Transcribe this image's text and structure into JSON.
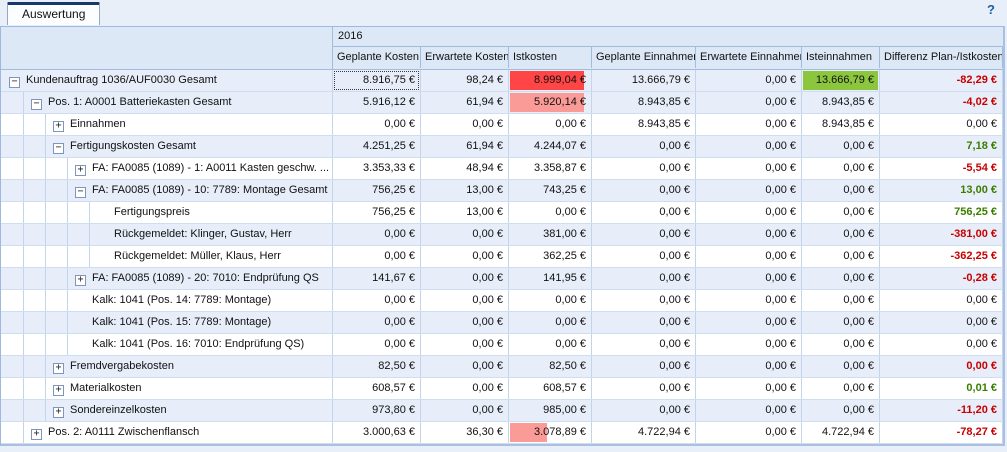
{
  "tab": {
    "label": "Auswertung"
  },
  "help": {
    "icon": "?"
  },
  "header": {
    "year": "2016",
    "columns": [
      {
        "key": "geplante-kosten",
        "label": "Geplante Kosten"
      },
      {
        "key": "erwartete-kosten",
        "label": "Erwartete Kosten"
      },
      {
        "key": "istkosten",
        "label": "Istkosten"
      },
      {
        "key": "geplante-einnahmen",
        "label": "Geplante Einnahmen"
      },
      {
        "key": "erwartete-einnahmen",
        "label": "Erwartete Einnahmen"
      },
      {
        "key": "isteinnahmen",
        "label": "Isteinnahmen"
      },
      {
        "key": "differenz",
        "label": "Differenz Plan-/Istkosten"
      }
    ]
  },
  "colors": {
    "bar_red": "#FF4545",
    "bar_pink": "#FA9B98",
    "bar_green": "#8CC63F",
    "negative_text": "#C80000",
    "positive_text": "#3A7D00",
    "zero_text": "#111111"
  },
  "rows": [
    {
      "label": "Kundenauftrag 1036/AUF0030 Gesamt",
      "level": 0,
      "expander": "minus",
      "shaded": true,
      "values": [
        "8.916,75 €",
        "98,24 €",
        "8.999,04 €",
        "13.666,79 €",
        "0,00 €",
        "13.666,79 €",
        "-82,29 €"
      ],
      "diff_type": "neg",
      "selected_col": 0,
      "bars": [
        {
          "col": 2,
          "color": "bar_red",
          "width_pct": 90
        },
        {
          "col": 5,
          "color": "bar_green",
          "width_pct": 98
        }
      ]
    },
    {
      "label": "Pos. 1: A0001 Batteriekasten Gesamt",
      "level": 1,
      "expander": "minus",
      "shaded": true,
      "values": [
        "5.916,12 €",
        "61,94 €",
        "5.920,14 €",
        "8.943,85 €",
        "0,00 €",
        "8.943,85 €",
        "-4,02 €"
      ],
      "diff_type": "neg",
      "bars": [
        {
          "col": 2,
          "color": "bar_pink",
          "width_pct": 90
        }
      ]
    },
    {
      "label": "Einnahmen",
      "level": 2,
      "expander": "plus",
      "shaded": false,
      "values": [
        "0,00 €",
        "0,00 €",
        "0,00 €",
        "8.943,85 €",
        "0,00 €",
        "8.943,85 €",
        "0,00 €"
      ],
      "diff_type": "zero",
      "bars": []
    },
    {
      "label": "Fertigungskosten Gesamt",
      "level": 2,
      "expander": "minus",
      "shaded": true,
      "values": [
        "4.251,25 €",
        "61,94 €",
        "4.244,07 €",
        "0,00 €",
        "0,00 €",
        "0,00 €",
        "7,18 €"
      ],
      "diff_type": "pos",
      "bars": []
    },
    {
      "label": "FA: FA0085 (1089) - 1: A0011 Kasten geschw. ...",
      "level": 3,
      "expander": "plus",
      "shaded": false,
      "values": [
        "3.353,33 €",
        "48,94 €",
        "3.358,87 €",
        "0,00 €",
        "0,00 €",
        "0,00 €",
        "-5,54 €"
      ],
      "diff_type": "neg",
      "bars": []
    },
    {
      "label": "FA: FA0085 (1089) - 10: 7789: Montage Gesamt",
      "level": 3,
      "expander": "minus",
      "shaded": true,
      "values": [
        "756,25 €",
        "13,00 €",
        "743,25 €",
        "0,00 €",
        "0,00 €",
        "0,00 €",
        "13,00 €"
      ],
      "diff_type": "pos",
      "bars": []
    },
    {
      "label": "Fertigungspreis",
      "level": 4,
      "expander": "none",
      "shaded": false,
      "values": [
        "756,25 €",
        "13,00 €",
        "0,00 €",
        "0,00 €",
        "0,00 €",
        "0,00 €",
        "756,25 €"
      ],
      "diff_type": "pos",
      "bars": []
    },
    {
      "label": "Rückgemeldet: Klinger, Gustav, Herr",
      "level": 4,
      "expander": "none",
      "shaded": true,
      "values": [
        "0,00 €",
        "0,00 €",
        "381,00 €",
        "0,00 €",
        "0,00 €",
        "0,00 €",
        "-381,00 €"
      ],
      "diff_type": "neg",
      "bars": []
    },
    {
      "label": "Rückgemeldet: Müller, Klaus, Herr",
      "level": 4,
      "expander": "none",
      "shaded": false,
      "values": [
        "0,00 €",
        "0,00 €",
        "362,25 €",
        "0,00 €",
        "0,00 €",
        "0,00 €",
        "-362,25 €"
      ],
      "diff_type": "neg",
      "bars": []
    },
    {
      "label": "FA: FA0085 (1089) - 20: 7010: Endprüfung QS",
      "level": 3,
      "expander": "plus",
      "shaded": true,
      "values": [
        "141,67 €",
        "0,00 €",
        "141,95 €",
        "0,00 €",
        "0,00 €",
        "0,00 €",
        "-0,28 €"
      ],
      "diff_type": "neg",
      "bars": []
    },
    {
      "label": "Kalk: 1041 (Pos. 14: 7789: Montage)",
      "level": 3,
      "expander": "none",
      "shaded": false,
      "values": [
        "0,00 €",
        "0,00 €",
        "0,00 €",
        "0,00 €",
        "0,00 €",
        "0,00 €",
        "0,00 €"
      ],
      "diff_type": "zero",
      "bars": []
    },
    {
      "label": "Kalk: 1041 (Pos. 15: 7789: Montage)",
      "level": 3,
      "expander": "none",
      "shaded": true,
      "values": [
        "0,00 €",
        "0,00 €",
        "0,00 €",
        "0,00 €",
        "0,00 €",
        "0,00 €",
        "0,00 €"
      ],
      "diff_type": "zero",
      "bars": []
    },
    {
      "label": "Kalk: 1041 (Pos. 16: 7010: Endprüfung QS)",
      "level": 3,
      "expander": "none",
      "shaded": false,
      "values": [
        "0,00 €",
        "0,00 €",
        "0,00 €",
        "0,00 €",
        "0,00 €",
        "0,00 €",
        "0,00 €"
      ],
      "diff_type": "zero",
      "bars": []
    },
    {
      "label": "Fremdvergabekosten",
      "level": 2,
      "expander": "plus",
      "shaded": true,
      "values": [
        "82,50 €",
        "0,00 €",
        "82,50 €",
        "0,00 €",
        "0,00 €",
        "0,00 €",
        "0,00 €"
      ],
      "diff_type": "neg",
      "bars": []
    },
    {
      "label": "Materialkosten",
      "level": 2,
      "expander": "plus",
      "shaded": false,
      "values": [
        "608,57 €",
        "0,00 €",
        "608,57 €",
        "0,00 €",
        "0,00 €",
        "0,00 €",
        "0,01 €"
      ],
      "diff_type": "pos",
      "bars": []
    },
    {
      "label": "Sondereinzelkosten",
      "level": 2,
      "expander": "plus",
      "shaded": true,
      "values": [
        "973,80 €",
        "0,00 €",
        "985,00 €",
        "0,00 €",
        "0,00 €",
        "0,00 €",
        "-11,20 €"
      ],
      "diff_type": "neg",
      "bars": []
    },
    {
      "label": "Pos. 2: A0111 Zwischenflansch",
      "level": 1,
      "expander": "plus",
      "shaded": false,
      "values": [
        "3.000,63 €",
        "36,30 €",
        "3.078,89 €",
        "4.722,94 €",
        "0,00 €",
        "4.722,94 €",
        "-78,27 €"
      ],
      "diff_type": "neg",
      "bars": [
        {
          "col": 2,
          "color": "bar_pink",
          "width_pct": 45
        }
      ]
    }
  ]
}
